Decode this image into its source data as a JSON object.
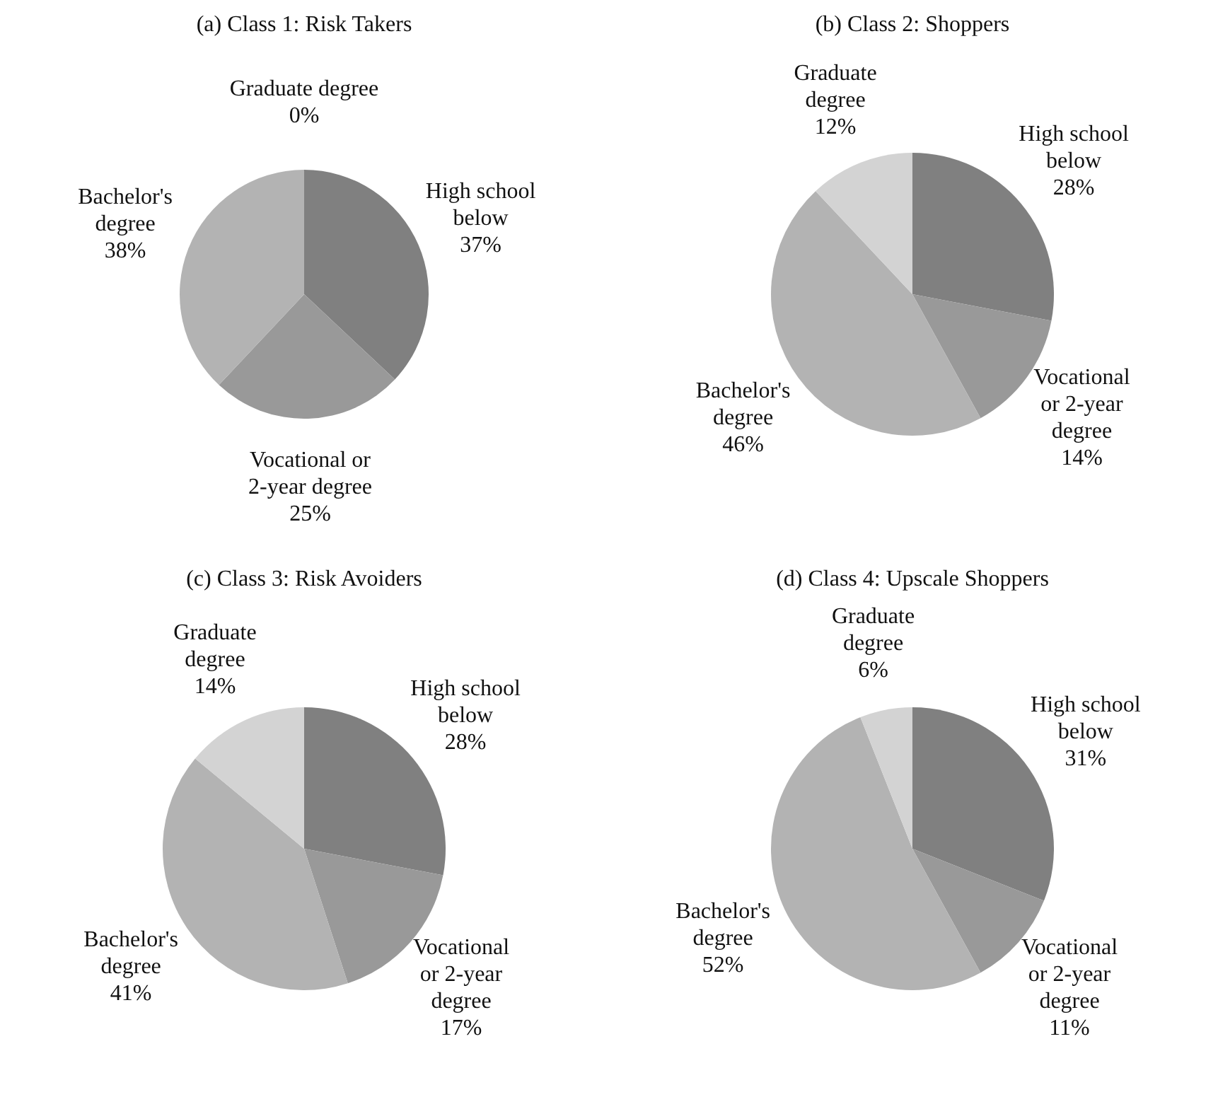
{
  "chart_data": [
    {
      "type": "pie",
      "title": "(a)  Class 1: Risk Takers",
      "categories": [
        "High school below",
        "Vocational or 2-year degree",
        "Bachelor's degree",
        "Graduate degree"
      ],
      "values": [
        37,
        25,
        38,
        0
      ],
      "value_labels": [
        "37%",
        "25%",
        "38%",
        "0%"
      ],
      "colors": [
        "#808080",
        "#999999",
        "#b3b3b3",
        "#d3d3d3"
      ]
    },
    {
      "type": "pie",
      "title": "(b)  Class 2: Shoppers",
      "categories": [
        "High school below",
        "Vocational or 2-year degree",
        "Bachelor's degree",
        "Graduate degree"
      ],
      "values": [
        28,
        14,
        46,
        12
      ],
      "value_labels": [
        "28%",
        "14%",
        "46%",
        "12%"
      ],
      "colors": [
        "#808080",
        "#999999",
        "#b3b3b3",
        "#d3d3d3"
      ]
    },
    {
      "type": "pie",
      "title": "(c)  Class 3: Risk Avoiders",
      "categories": [
        "High school below",
        "Vocational or 2-year degree",
        "Bachelor's degree",
        "Graduate degree"
      ],
      "values": [
        28,
        17,
        41,
        14
      ],
      "value_labels": [
        "28%",
        "17%",
        "41%",
        "14%"
      ],
      "colors": [
        "#808080",
        "#999999",
        "#b3b3b3",
        "#d3d3d3"
      ]
    },
    {
      "type": "pie",
      "title": "(d)  Class 4: Upscale Shoppers",
      "categories": [
        "High school below",
        "Vocational or 2-year degree",
        "Bachelor's degree",
        "Graduate degree"
      ],
      "values": [
        31,
        11,
        52,
        6
      ],
      "value_labels": [
        "31%",
        "11%",
        "52%",
        "6%"
      ],
      "colors": [
        "#808080",
        "#999999",
        "#b3b3b3",
        "#d3d3d3"
      ]
    }
  ]
}
